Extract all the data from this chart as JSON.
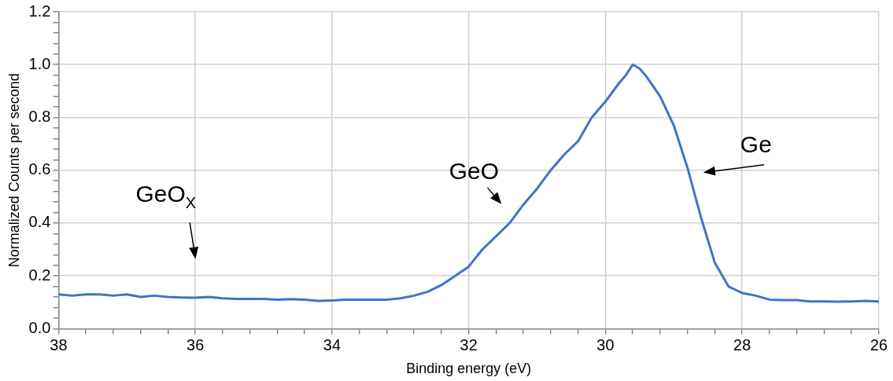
{
  "chart_data": {
    "type": "line",
    "xlabel": "Binding energy (eV)",
    "ylabel": "Normalized Counts per second",
    "xlim": [
      38,
      26
    ],
    "xticks": [
      38,
      {
        "value": 37.6,
        "label": null
      },
      {
        "value": 37.2,
        "label": null
      },
      {
        "value": 36.8,
        "label": null
      },
      {
        "value": 36.4,
        "label": null
      },
      36,
      {
        "value": 35.6,
        "label": null
      },
      {
        "value": 35.2,
        "label": null
      },
      {
        "value": 34.8,
        "label": null
      },
      {
        "value": 34.4,
        "label": null
      },
      34,
      {
        "value": 33.6,
        "label": null
      },
      {
        "value": 33.2,
        "label": null
      },
      {
        "value": 32.8,
        "label": null
      },
      {
        "value": 32.4,
        "label": null
      },
      32,
      {
        "value": 31.6,
        "label": null
      },
      {
        "value": 31.2,
        "label": null
      },
      {
        "value": 30.8,
        "label": null
      },
      {
        "value": 30.4,
        "label": null
      },
      30,
      {
        "value": 29.6,
        "label": null
      },
      {
        "value": 29.2,
        "label": null
      },
      {
        "value": 28.8,
        "label": null
      },
      {
        "value": 28.4,
        "label": null
      },
      28,
      {
        "value": 27.6,
        "label": null
      },
      {
        "value": 27.2,
        "label": null
      },
      {
        "value": 26.8,
        "label": null
      },
      {
        "value": 26.4,
        "label": null
      },
      26
    ],
    "ylim": [
      0,
      1.2
    ],
    "yticks": [
      {
        "value": 0,
        "label": "0.0"
      },
      {
        "value": 0.04,
        "label": null
      },
      {
        "value": 0.08,
        "label": null
      },
      {
        "value": 0.12,
        "label": null
      },
      {
        "value": 0.16,
        "label": null
      },
      0.2,
      {
        "value": 0.24,
        "label": null
      },
      {
        "value": 0.28,
        "label": null
      },
      {
        "value": 0.32,
        "label": null
      },
      {
        "value": 0.36,
        "label": null
      },
      0.4,
      {
        "value": 0.44,
        "label": null
      },
      {
        "value": 0.48,
        "label": null
      },
      {
        "value": 0.52,
        "label": null
      },
      {
        "value": 0.56,
        "label": null
      },
      0.6,
      {
        "value": 0.64,
        "label": null
      },
      {
        "value": 0.68,
        "label": null
      },
      {
        "value": 0.72,
        "label": null
      },
      {
        "value": 0.76,
        "label": null
      },
      0.8,
      {
        "value": 0.84,
        "label": null
      },
      {
        "value": 0.88,
        "label": null
      },
      {
        "value": 0.92,
        "label": null
      },
      {
        "value": 0.96,
        "label": null
      },
      {
        "value": 1.0,
        "label": "1.0"
      },
      {
        "value": 1.04,
        "label": null
      },
      {
        "value": 1.08,
        "label": null
      },
      {
        "value": 1.12,
        "label": null
      },
      {
        "value": 1.16,
        "label": null
      },
      1.2
    ],
    "grid": true,
    "marker": "none",
    "line_style": "solid",
    "series": [
      {
        "color": "#4472c4",
        "x": [
          38,
          37.8,
          37.6,
          37.4,
          37.2,
          37.0,
          36.8,
          36.6,
          36.4,
          36.2,
          36.0,
          35.8,
          35.6,
          35.4,
          35.2,
          35.0,
          34.8,
          34.6,
          34.4,
          34.2,
          34.0,
          33.8,
          33.6,
          33.4,
          33.2,
          33.0,
          32.8,
          32.6,
          32.4,
          32.2,
          32.0,
          31.8,
          31.6,
          31.4,
          31.2,
          31.0,
          30.8,
          30.6,
          30.4,
          30.2,
          30.0,
          29.8,
          29.7,
          29.6,
          29.5,
          29.4,
          29.2,
          29.0,
          28.8,
          28.6,
          28.4,
          28.2,
          28.0,
          27.8,
          27.6,
          27.4,
          27.2,
          27.0,
          26.8,
          26.6,
          26.4,
          26.2,
          26.0
        ],
        "values": [
          0.13,
          0.125,
          0.13,
          0.13,
          0.125,
          0.13,
          0.12,
          0.125,
          0.12,
          0.118,
          0.117,
          0.12,
          0.115,
          0.113,
          0.113,
          0.113,
          0.11,
          0.112,
          0.11,
          0.105,
          0.107,
          0.11,
          0.11,
          0.11,
          0.11,
          0.115,
          0.125,
          0.14,
          0.165,
          0.2,
          0.235,
          0.3,
          0.35,
          0.4,
          0.47,
          0.53,
          0.6,
          0.66,
          0.71,
          0.8,
          0.86,
          0.93,
          0.96,
          1.0,
          0.985,
          0.955,
          0.88,
          0.77,
          0.61,
          0.42,
          0.25,
          0.16,
          0.135,
          0.125,
          0.11,
          0.108,
          0.108,
          0.103,
          0.103,
          0.102,
          0.103,
          0.105,
          0.103
        ]
      }
    ],
    "annotations": [
      "GeO$_{X}$",
      "GeO",
      "Ge"
    ]
  }
}
